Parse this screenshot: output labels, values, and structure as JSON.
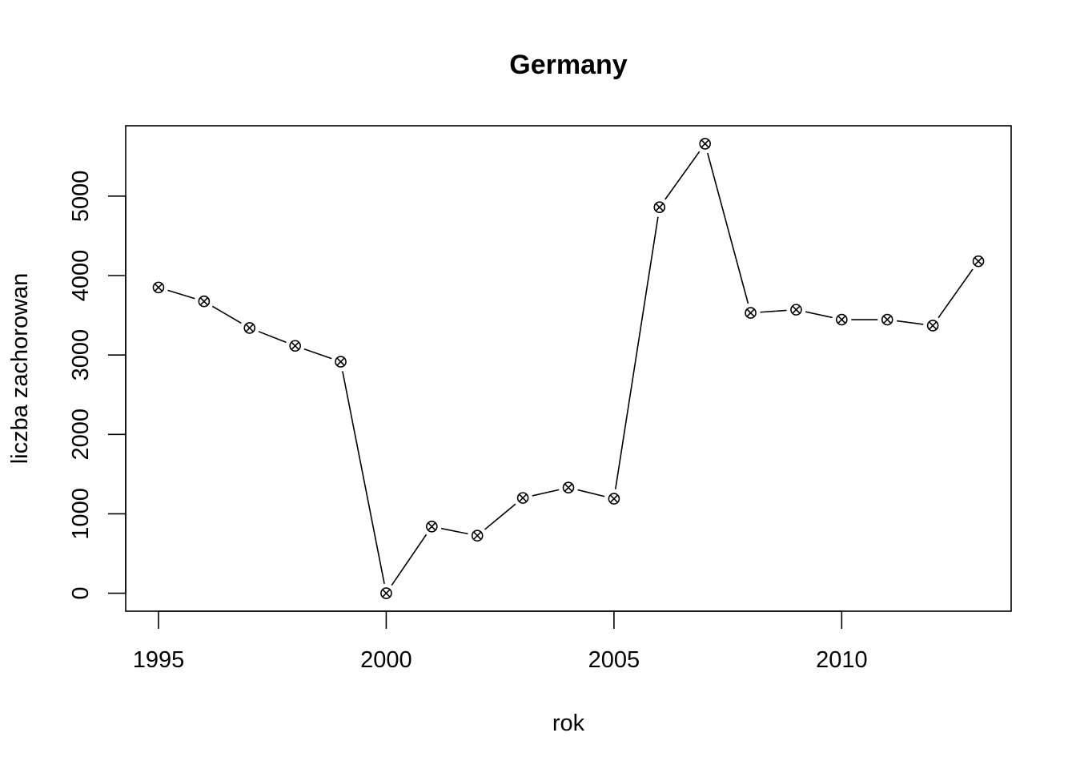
{
  "chart_data": {
    "type": "line",
    "title": "Germany",
    "xlabel": "rok",
    "ylabel": "liczba zachorowan",
    "x": [
      1995,
      1996,
      1997,
      1998,
      1999,
      2000,
      2001,
      2002,
      2003,
      2004,
      2005,
      2006,
      2007,
      2008,
      2009,
      2010,
      2011,
      2012,
      2013
    ],
    "series": [
      {
        "values": [
          3850,
          3675,
          3340,
          3115,
          2915,
          0,
          840,
          725,
          1200,
          1330,
          1190,
          4860,
          5660,
          3530,
          3570,
          3445,
          3445,
          3370,
          4180
        ]
      }
    ],
    "xticks": [
      "1995",
      "2000",
      "2005",
      "2010"
    ],
    "yticks": [
      "0",
      "1000",
      "2000",
      "3000",
      "4000",
      "5000"
    ],
    "xlim": [
      1994.28,
      2013.72
    ],
    "ylim": [
      -226,
      5886
    ],
    "marker": "circle-x",
    "line_style": "solid",
    "grid": false,
    "colors": {
      "line": "#000000",
      "marker": "#000000",
      "background": "#ffffff"
    }
  }
}
